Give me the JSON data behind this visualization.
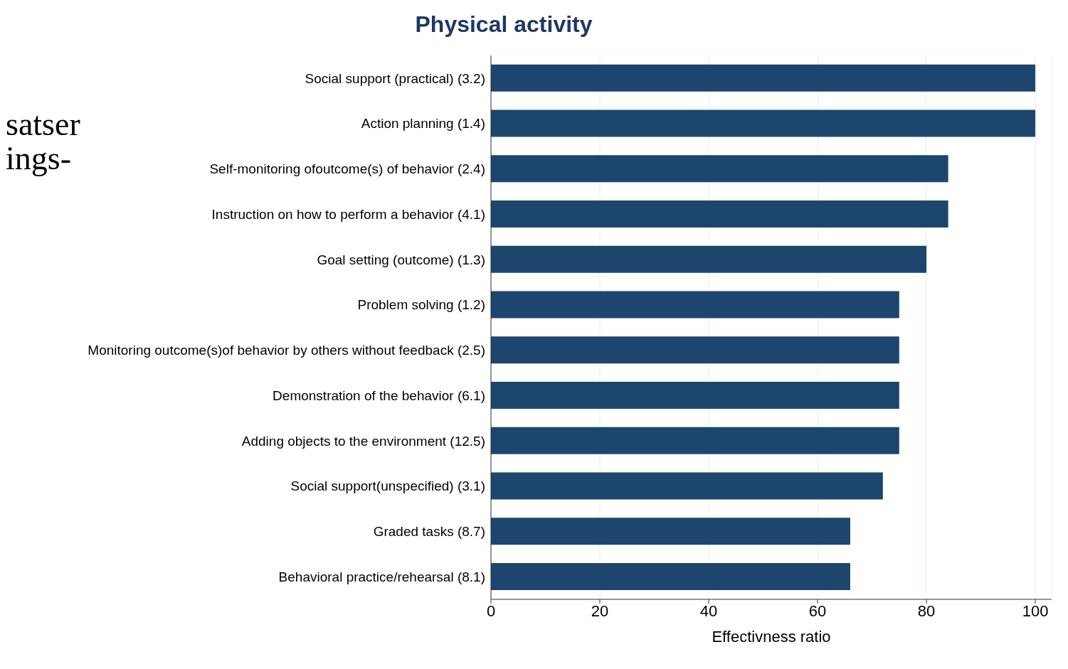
{
  "chart_data": {
    "type": "bar",
    "orientation": "horizontal",
    "title": "Physical activity",
    "xlabel": "Effectivness ratio",
    "categories": [
      "Social support (practical) (3.2)",
      "Action planning (1.4)",
      "Self-monitoring ofoutcome(s) of behavior (2.4)",
      "Instruction on how to perform a behavior (4.1)",
      "Goal setting (outcome) (1.3)",
      "Problem solving (1.2)",
      "Monitoring outcome(s)of behavior by others without feedback (2.5)",
      "Demonstration of the behavior (6.1)",
      "Adding objects to the environment (12.5)",
      "Social support(unspecified) (3.1)",
      "Graded tasks (8.7)",
      "Behavioral practice/rehearsal (8.1)"
    ],
    "values": [
      100,
      100,
      84,
      84,
      80,
      75,
      75,
      75,
      75,
      72,
      66,
      66
    ],
    "color": "#1c466e",
    "xlim": [
      0,
      103
    ],
    "xticks": [
      0,
      20,
      40,
      60,
      80,
      100
    ],
    "grid": "x",
    "legend": false,
    "annotations": [
      "satser",
      "ings-"
    ]
  }
}
